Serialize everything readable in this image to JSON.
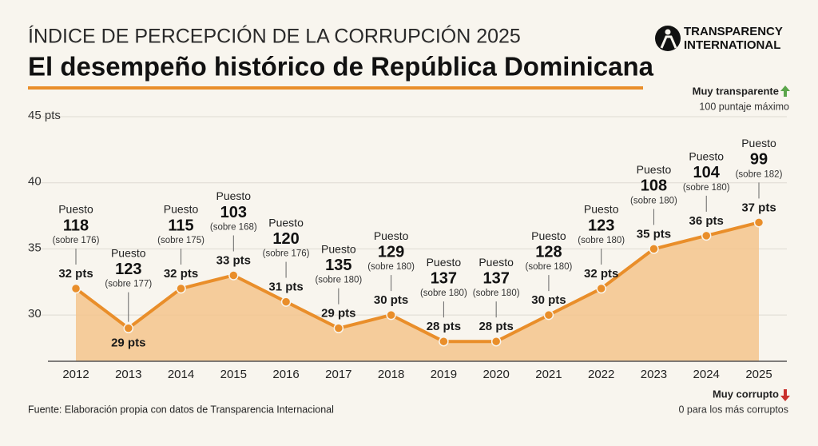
{
  "header": {
    "supertitle": "ÍNDICE DE PERCEPCIÓN DE LA CORRUPCIÓN 2025",
    "title": "El desempeño histórico de República Dominicana",
    "logo_line1": "TRANSPARENCY",
    "logo_line2": "INTERNATIONAL"
  },
  "chart_data": {
    "type": "area-line",
    "categories": [
      "2012",
      "2013",
      "2014",
      "2015",
      "2016",
      "2017",
      "2018",
      "2019",
      "2020",
      "2021",
      "2022",
      "2023",
      "2024",
      "2025"
    ],
    "values": [
      32,
      29,
      32,
      33,
      31,
      29,
      30,
      28,
      28,
      30,
      32,
      35,
      36,
      37
    ],
    "value_labels": [
      "32 pts",
      "29 pts",
      "32 pts",
      "33 pts",
      "31 pts",
      "29 pts",
      "30 pts",
      "28 pts",
      "28 pts",
      "30 pts",
      "32 pts",
      "35 pts",
      "36 pts",
      "37 pts"
    ],
    "rank_prefix": "Puesto",
    "ranks": [
      118,
      123,
      115,
      103,
      120,
      135,
      129,
      137,
      137,
      128,
      123,
      108,
      104,
      99
    ],
    "rank_totals": [
      "(sobre 176)",
      "(sobre 177)",
      "(sobre 175)",
      "(sobre 168)",
      "(sobre 176)",
      "(sobre 180)",
      "(sobre 180)",
      "(sobre 180)",
      "(sobre 180)",
      "(sobre 180)",
      "(sobre 180)",
      "(sobre 180)",
      "(sobre 180)",
      "(sobre 182)"
    ],
    "color": "#e98e2a",
    "area_color": "#f5c48c",
    "ylim": [
      26.5,
      45
    ],
    "yticks": [
      {
        "value": 45,
        "label": "45 pts"
      },
      40,
      35,
      30
    ],
    "grid": true,
    "top_note_title": "Muy transparente",
    "top_note": "100 puntaje máximo",
    "bottom_note_title": "Muy corrupto",
    "bottom_note": "0 para los más corruptos"
  },
  "footer": {
    "source": "Fuente: Elaboración propia con datos de Transparencia Internacional"
  }
}
